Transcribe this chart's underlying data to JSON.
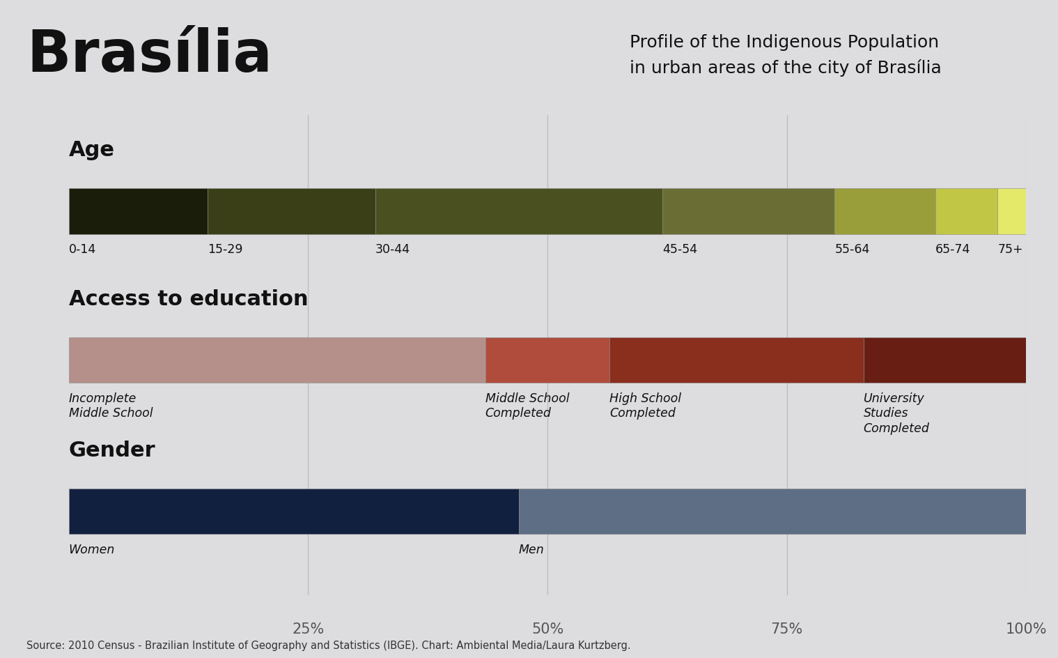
{
  "title_left": "Brasília",
  "title_right": "Profile of the Indigenous Population\nin urban areas of the city of Brasília",
  "bg_header": "#ffffff",
  "bg_chart": "#dddde0",
  "source_text": "Source: 2010 Census - Brazilian Institute of Geography and Statistics (IBGE). Chart: Ambiental Media/Laura Kurtzberg.",
  "age": {
    "label": "Age",
    "segments": [
      {
        "label": "0-14",
        "value": 14.5,
        "color": "#1a1d0a"
      },
      {
        "label": "15-29",
        "value": 17.5,
        "color": "#3a3f18"
      },
      {
        "label": "30-44",
        "value": 30.0,
        "color": "#4a5020"
      },
      {
        "label": "45-54",
        "value": 18.0,
        "color": "#6a6e35"
      },
      {
        "label": "55-64",
        "value": 10.5,
        "color": "#9a9e3a"
      },
      {
        "label": "65-74",
        "value": 6.5,
        "color": "#c2c645"
      },
      {
        "label": "75+",
        "value": 3.0,
        "color": "#e5e96a"
      }
    ]
  },
  "education": {
    "label": "Access to education",
    "segments": [
      {
        "label": "Incomplete\nMiddle School",
        "value": 43.5,
        "color": "#b5908a"
      },
      {
        "label": "Middle School\nCompleted",
        "value": 13.0,
        "color": "#b04c3c"
      },
      {
        "label": "High School\nCompleted",
        "value": 26.5,
        "color": "#8a2e1e"
      },
      {
        "label": "University\nStudies\nCompleted",
        "value": 17.0,
        "color": "#681e12"
      }
    ]
  },
  "gender": {
    "label": "Gender",
    "segments": [
      {
        "label": "Women",
        "value": 47.0,
        "color": "#122040"
      },
      {
        "label": "Men",
        "value": 53.0,
        "color": "#5e6e84"
      }
    ]
  },
  "x_ticks": [
    25,
    50,
    75,
    100
  ],
  "x_tick_labels": [
    "25%",
    "50%",
    "75%",
    "100%"
  ],
  "grid_color": "#bbbbbb"
}
